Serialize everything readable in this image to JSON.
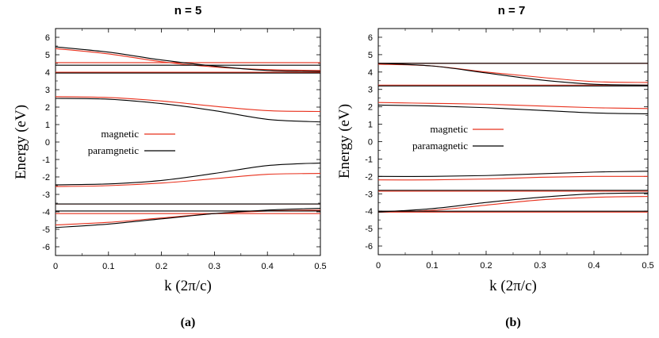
{
  "chart_data": [
    {
      "type": "line",
      "title": "n = 5",
      "panel_label": "(a)",
      "xlabel": "k (2π/c)",
      "ylabel": "Energy (eV)",
      "xlim": [
        0,
        0.5
      ],
      "ylim": [
        -6.5,
        6.5
      ],
      "xticks": [
        "0",
        "0.1",
        "0.2",
        "0.3",
        "0.4",
        "0.5"
      ],
      "yticks": [
        "-6",
        "-5",
        "-4",
        "-3",
        "-2",
        "-1",
        "0",
        "1",
        "2",
        "3",
        "4",
        "5",
        "6"
      ],
      "legend": [
        {
          "label": "magnetic",
          "color": "#e8301c"
        },
        {
          "label": "paramgnetic",
          "color": "#000000"
        }
      ],
      "series": [
        {
          "name": "magnetic",
          "color": "#e8301c",
          "bands": [
            {
              "x": [
                0,
                0.1,
                0.2,
                0.3,
                0.4,
                0.5
              ],
              "y": [
                5.35,
                5.05,
                4.6,
                4.3,
                4.15,
                4.1
              ]
            },
            {
              "x": [
                0,
                0.5
              ],
              "y": [
                4.55,
                4.55
              ]
            },
            {
              "x": [
                0,
                0.5
              ],
              "y": [
                4.0,
                4.0
              ]
            },
            {
              "x": [
                0,
                0.1,
                0.2,
                0.3,
                0.4,
                0.5
              ],
              "y": [
                2.6,
                2.55,
                2.35,
                2.05,
                1.8,
                1.75
              ]
            },
            {
              "x": [
                0,
                0.1,
                0.2,
                0.3,
                0.4,
                0.5
              ],
              "y": [
                -2.55,
                -2.5,
                -2.35,
                -2.1,
                -1.85,
                -1.8
              ]
            },
            {
              "x": [
                0,
                0.5
              ],
              "y": [
                -3.55,
                -3.55
              ]
            },
            {
              "x": [
                0,
                0.5
              ],
              "y": [
                -4.1,
                -4.1
              ]
            },
            {
              "x": [
                0,
                0.1,
                0.2,
                0.3,
                0.4,
                0.5
              ],
              "y": [
                -4.75,
                -4.6,
                -4.35,
                -4.1,
                -3.95,
                -3.9
              ]
            }
          ]
        },
        {
          "name": "paramgnetic",
          "color": "#000000",
          "bands": [
            {
              "x": [
                0,
                0.1,
                0.2,
                0.3,
                0.4,
                0.5
              ],
              "y": [
                5.45,
                5.15,
                4.7,
                4.35,
                4.1,
                4.05
              ]
            },
            {
              "x": [
                0,
                0.5
              ],
              "y": [
                4.4,
                4.4
              ]
            },
            {
              "x": [
                0,
                0.5
              ],
              "y": [
                3.95,
                3.95
              ]
            },
            {
              "x": [
                0,
                0.1,
                0.2,
                0.3,
                0.4,
                0.5
              ],
              "y": [
                2.5,
                2.45,
                2.2,
                1.8,
                1.3,
                1.15
              ]
            },
            {
              "x": [
                0,
                0.1,
                0.2,
                0.3,
                0.4,
                0.5
              ],
              "y": [
                -2.45,
                -2.4,
                -2.2,
                -1.8,
                -1.35,
                -1.2
              ]
            },
            {
              "x": [
                0,
                0.5
              ],
              "y": [
                -3.55,
                -3.55
              ]
            },
            {
              "x": [
                0,
                0.5
              ],
              "y": [
                -3.95,
                -3.95
              ]
            },
            {
              "x": [
                0,
                0.1,
                0.2,
                0.3,
                0.4,
                0.5
              ],
              "y": [
                -4.9,
                -4.7,
                -4.4,
                -4.1,
                -3.9,
                -3.8
              ]
            }
          ]
        }
      ]
    },
    {
      "type": "line",
      "title": "n = 7",
      "panel_label": "(b)",
      "xlabel": "k (2π/c)",
      "ylabel": "Energy (eV)",
      "xlim": [
        0,
        0.5
      ],
      "ylim": [
        -6.5,
        6.5
      ],
      "xticks": [
        "0",
        "0.1",
        "0.2",
        "0.3",
        "0.4",
        "0.5"
      ],
      "yticks": [
        "-6",
        "-5",
        "-4",
        "-3",
        "-2",
        "-1",
        "0",
        "1",
        "2",
        "3",
        "4",
        "5",
        "6"
      ],
      "legend": [
        {
          "label": "magnetic",
          "color": "#e8301c"
        },
        {
          "label": "paramagnetic",
          "color": "#000000"
        }
      ],
      "series": [
        {
          "name": "magnetic",
          "color": "#e8301c",
          "bands": [
            {
              "x": [
                0,
                0.5
              ],
              "y": [
                4.5,
                4.5
              ]
            },
            {
              "x": [
                0,
                0.1,
                0.2,
                0.3,
                0.4,
                0.5
              ],
              "y": [
                4.45,
                4.35,
                4.0,
                3.7,
                3.45,
                3.4
              ]
            },
            {
              "x": [
                0,
                0.5
              ],
              "y": [
                3.25,
                3.25
              ]
            },
            {
              "x": [
                0,
                0.1,
                0.2,
                0.3,
                0.4,
                0.5
              ],
              "y": [
                2.25,
                2.2,
                2.15,
                2.05,
                1.95,
                1.9
              ]
            },
            {
              "x": [
                0,
                0.1,
                0.2,
                0.3,
                0.4,
                0.5
              ],
              "y": [
                -2.2,
                -2.2,
                -2.15,
                -2.05,
                -2.0,
                -2.0
              ]
            },
            {
              "x": [
                0,
                0.5
              ],
              "y": [
                -2.85,
                -2.85
              ]
            },
            {
              "x": [
                0,
                0.1,
                0.2,
                0.3,
                0.4,
                0.5
              ],
              "y": [
                -4.05,
                -3.95,
                -3.65,
                -3.35,
                -3.2,
                -3.15
              ]
            },
            {
              "x": [
                0,
                0.5
              ],
              "y": [
                -4.05,
                -4.05
              ]
            }
          ]
        },
        {
          "name": "paramagnetic",
          "color": "#000000",
          "bands": [
            {
              "x": [
                0,
                0.5
              ],
              "y": [
                4.5,
                4.5
              ]
            },
            {
              "x": [
                0,
                0.1,
                0.2,
                0.3,
                0.4,
                0.5
              ],
              "y": [
                4.5,
                4.35,
                3.95,
                3.55,
                3.3,
                3.25
              ]
            },
            {
              "x": [
                0,
                0.5
              ],
              "y": [
                3.2,
                3.2
              ]
            },
            {
              "x": [
                0,
                0.1,
                0.2,
                0.3,
                0.4,
                0.5
              ],
              "y": [
                2.1,
                2.05,
                1.95,
                1.8,
                1.65,
                1.6
              ]
            },
            {
              "x": [
                0,
                0.1,
                0.2,
                0.3,
                0.4,
                0.5
              ],
              "y": [
                -2.0,
                -2.0,
                -1.95,
                -1.85,
                -1.75,
                -1.7
              ]
            },
            {
              "x": [
                0,
                0.5
              ],
              "y": [
                -2.8,
                -2.8
              ]
            },
            {
              "x": [
                0,
                0.1,
                0.2,
                0.3,
                0.4,
                0.5
              ],
              "y": [
                -4.05,
                -3.85,
                -3.5,
                -3.2,
                -3.0,
                -2.95
              ]
            },
            {
              "x": [
                0,
                0.5
              ],
              "y": [
                -4.0,
                -4.0
              ]
            }
          ]
        }
      ]
    }
  ]
}
